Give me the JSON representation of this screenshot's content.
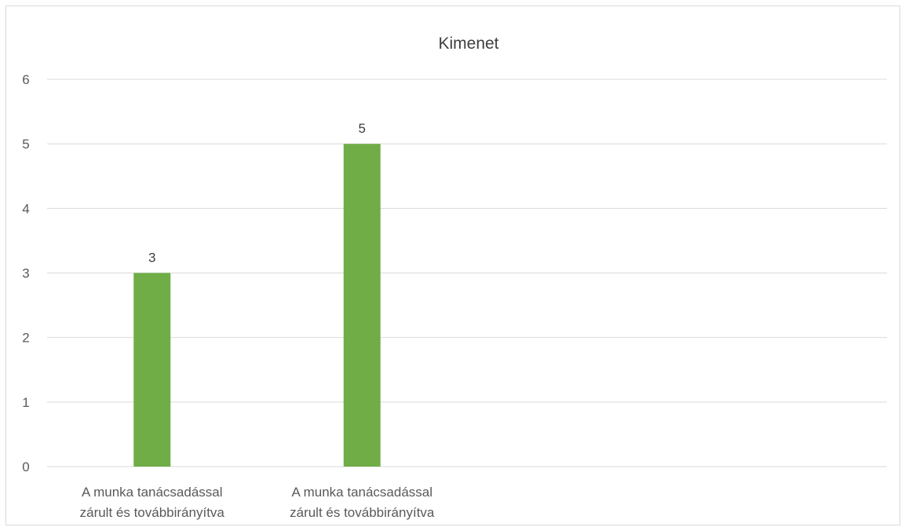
{
  "chart_data": {
    "type": "bar",
    "title": "Kimenet",
    "categories": [
      [
        "A munka tanácsadással",
        "zárult és továbbirányítva"
      ],
      [
        "A munka tanácsadással",
        "zárult és továbbirányítva"
      ],
      [
        "",
        ""
      ],
      [
        "",
        ""
      ]
    ],
    "values": [
      3,
      5,
      null,
      null
    ],
    "data_labels": [
      "3",
      "5",
      "",
      ""
    ],
    "ylim": [
      0,
      6
    ],
    "yticks": [
      0,
      1,
      2,
      3,
      4,
      5,
      6
    ],
    "grid": true,
    "legend": "none",
    "bar_color": "#70ad47",
    "grid_color": "#d9d9d9"
  }
}
